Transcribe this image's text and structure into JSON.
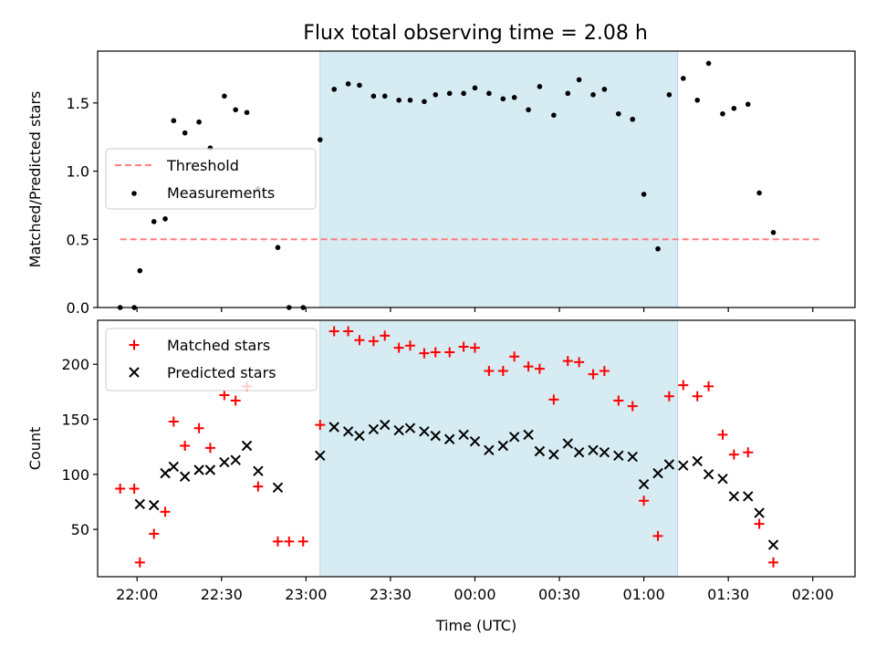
{
  "title": "Flux total observing time = 2.08 h",
  "chart_data": [
    {
      "type": "scatter",
      "panel": "top",
      "ylabel": "Matched/Predicted stars",
      "xlabel": "",
      "xlim": [
        "21:46",
        "02:15"
      ],
      "ylim": [
        0,
        1.88
      ],
      "yticks": [
        "0.0",
        "0.5",
        "1.0",
        "1.5"
      ],
      "yticks_values": [
        0,
        0.5,
        1.0,
        1.5
      ],
      "highlight_span": [
        "23:05",
        "01:12"
      ],
      "threshold": {
        "name": "Threshold",
        "value": 0.5,
        "x": [
          "21:54",
          "02:03"
        ],
        "color": "#ff7f7f",
        "style": "dashed"
      },
      "legend_position": "center-left",
      "series": [
        {
          "name": "Measurements",
          "marker": "dot",
          "color": "#000000",
          "points": [
            [
              "21:54",
              0.0
            ],
            [
              "21:59",
              0.0
            ],
            [
              "22:01",
              0.27
            ],
            [
              "22:06",
              0.63
            ],
            [
              "22:10",
              0.65
            ],
            [
              "22:13",
              1.37
            ],
            [
              "22:17",
              1.28
            ],
            [
              "22:22",
              1.36
            ],
            [
              "22:26",
              1.17
            ],
            [
              "22:31",
              1.55
            ],
            [
              "22:35",
              1.45
            ],
            [
              "22:39",
              1.43
            ],
            [
              "22:43",
              0.87
            ],
            [
              "22:50",
              0.44
            ],
            [
              "22:54",
              0.0
            ],
            [
              "22:59",
              0.0
            ],
            [
              "23:05",
              1.23
            ],
            [
              "23:10",
              1.6
            ],
            [
              "23:15",
              1.64
            ],
            [
              "23:19",
              1.63
            ],
            [
              "23:24",
              1.55
            ],
            [
              "23:28",
              1.55
            ],
            [
              "23:33",
              1.52
            ],
            [
              "23:37",
              1.52
            ],
            [
              "23:42",
              1.51
            ],
            [
              "23:46",
              1.56
            ],
            [
              "23:51",
              1.57
            ],
            [
              "23:56",
              1.57
            ],
            [
              "00:00",
              1.61
            ],
            [
              "00:05",
              1.57
            ],
            [
              "00:10",
              1.53
            ],
            [
              "00:14",
              1.54
            ],
            [
              "00:19",
              1.45
            ],
            [
              "00:23",
              1.62
            ],
            [
              "00:28",
              1.41
            ],
            [
              "00:33",
              1.57
            ],
            [
              "00:37",
              1.67
            ],
            [
              "00:42",
              1.56
            ],
            [
              "00:46",
              1.6
            ],
            [
              "00:51",
              1.42
            ],
            [
              "00:56",
              1.38
            ],
            [
              "01:00",
              0.83
            ],
            [
              "01:05",
              0.43
            ],
            [
              "01:09",
              1.56
            ],
            [
              "01:14",
              1.68
            ],
            [
              "01:19",
              1.52
            ],
            [
              "01:23",
              1.79
            ],
            [
              "01:28",
              1.42
            ],
            [
              "01:32",
              1.46
            ],
            [
              "01:37",
              1.49
            ],
            [
              "01:41",
              0.84
            ],
            [
              "01:46",
              0.55
            ]
          ]
        }
      ]
    },
    {
      "type": "scatter",
      "panel": "bottom",
      "ylabel": "Count",
      "xlabel": "Time (UTC)",
      "xlim": [
        "21:46",
        "02:15"
      ],
      "ylim": [
        7,
        240
      ],
      "yticks": [
        "50",
        "100",
        "150",
        "200"
      ],
      "yticks_values": [
        50,
        100,
        150,
        200
      ],
      "xticks": [
        "22:00",
        "22:30",
        "23:00",
        "23:30",
        "00:00",
        "00:30",
        "01:00",
        "01:30",
        "02:00"
      ],
      "highlight_span": [
        "23:05",
        "01:12"
      ],
      "legend_position": "top-left",
      "series": [
        {
          "name": "Matched stars",
          "marker": "plus",
          "color": "#ff0000",
          "points": [
            [
              "21:54",
              87
            ],
            [
              "21:59",
              87
            ],
            [
              "22:01",
              20
            ],
            [
              "22:06",
              46
            ],
            [
              "22:10",
              66
            ],
            [
              "22:13",
              148
            ],
            [
              "22:17",
              126
            ],
            [
              "22:22",
              142
            ],
            [
              "22:26",
              124
            ],
            [
              "22:31",
              172
            ],
            [
              "22:35",
              167
            ],
            [
              "22:39",
              180
            ],
            [
              "22:43",
              89
            ],
            [
              "22:50",
              39
            ],
            [
              "22:54",
              39
            ],
            [
              "22:59",
              39
            ],
            [
              "23:05",
              145
            ],
            [
              "23:10",
              230
            ],
            [
              "23:15",
              230
            ],
            [
              "23:19",
              222
            ],
            [
              "23:24",
              221
            ],
            [
              "23:28",
              226
            ],
            [
              "23:33",
              215
            ],
            [
              "23:37",
              217
            ],
            [
              "23:42",
              210
            ],
            [
              "23:46",
              211
            ],
            [
              "23:51",
              211
            ],
            [
              "23:56",
              216
            ],
            [
              "00:00",
              215
            ],
            [
              "00:05",
              194
            ],
            [
              "00:10",
              194
            ],
            [
              "00:14",
              207
            ],
            [
              "00:19",
              198
            ],
            [
              "00:23",
              196
            ],
            [
              "00:28",
              168
            ],
            [
              "00:33",
              203
            ],
            [
              "00:37",
              202
            ],
            [
              "00:42",
              191
            ],
            [
              "00:46",
              194
            ],
            [
              "00:51",
              167
            ],
            [
              "00:56",
              162
            ],
            [
              "01:00",
              76
            ],
            [
              "01:05",
              44
            ],
            [
              "01:09",
              171
            ],
            [
              "01:14",
              181
            ],
            [
              "01:19",
              171
            ],
            [
              "01:23",
              180
            ],
            [
              "01:28",
              136
            ],
            [
              "01:32",
              118
            ],
            [
              "01:37",
              120
            ],
            [
              "01:41",
              55
            ],
            [
              "01:46",
              20
            ]
          ]
        },
        {
          "name": "Predicted stars",
          "marker": "x",
          "color": "#000000",
          "points": [
            [
              "22:01",
              73
            ],
            [
              "22:06",
              72
            ],
            [
              "22:10",
              101
            ],
            [
              "22:13",
              107
            ],
            [
              "22:17",
              98
            ],
            [
              "22:22",
              104
            ],
            [
              "22:26",
              104
            ],
            [
              "22:31",
              111
            ],
            [
              "22:35",
              113
            ],
            [
              "22:39",
              126
            ],
            [
              "22:43",
              103
            ],
            [
              "22:50",
              88
            ],
            [
              "23:05",
              117
            ],
            [
              "23:10",
              143
            ],
            [
              "23:15",
              139
            ],
            [
              "23:19",
              135
            ],
            [
              "23:24",
              141
            ],
            [
              "23:28",
              145
            ],
            [
              "23:33",
              140
            ],
            [
              "23:37",
              142
            ],
            [
              "23:42",
              139
            ],
            [
              "23:46",
              135
            ],
            [
              "23:51",
              132
            ],
            [
              "23:56",
              136
            ],
            [
              "00:00",
              130
            ],
            [
              "00:05",
              122
            ],
            [
              "00:10",
              126
            ],
            [
              "00:14",
              134
            ],
            [
              "00:19",
              136
            ],
            [
              "00:23",
              121
            ],
            [
              "00:28",
              118
            ],
            [
              "00:33",
              128
            ],
            [
              "00:37",
              120
            ],
            [
              "00:42",
              122
            ],
            [
              "00:46",
              120
            ],
            [
              "00:51",
              117
            ],
            [
              "00:56",
              116
            ],
            [
              "01:00",
              91
            ],
            [
              "01:05",
              101
            ],
            [
              "01:09",
              109
            ],
            [
              "01:14",
              108
            ],
            [
              "01:19",
              112
            ],
            [
              "01:23",
              100
            ],
            [
              "01:28",
              96
            ],
            [
              "01:32",
              80
            ],
            [
              "01:37",
              80
            ],
            [
              "01:41",
              65
            ],
            [
              "01:46",
              36
            ]
          ]
        }
      ]
    }
  ]
}
